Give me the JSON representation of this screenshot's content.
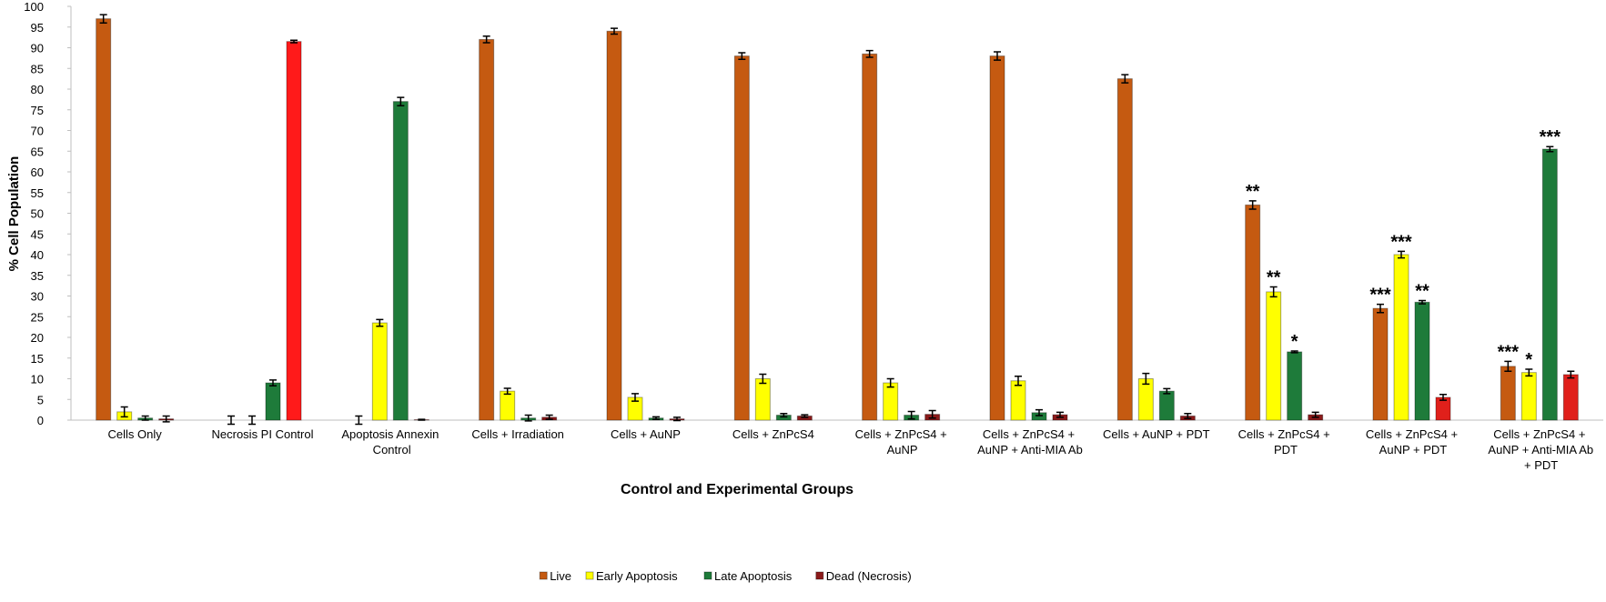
{
  "chart_data": {
    "type": "bar",
    "ylabel": "% Cell Population",
    "xlabel": "Control and Experimental Groups",
    "categories": [
      "Cells Only",
      "Necrosis PI Control",
      "Apoptosis Annexin Control",
      "Cells + Irradiation",
      "Cells + AuNP",
      "Cells + ZnPcS4",
      "Cells + ZnPcS4 + AuNP",
      "Cells + ZnPcS4 + AuNP + Anti-MIA Ab",
      "Cells + AuNP + PDT",
      "Cells + ZnPcS4 + PDT",
      "Cells + ZnPcS4 + AuNP + PDT",
      "Cells + ZnPcS4 + AuNP + Anti-MIA Ab + PDT"
    ],
    "series": [
      {
        "name": "Live",
        "color": "#c55a11",
        "values": [
          97,
          0,
          0,
          92,
          94,
          88,
          88.5,
          88,
          82.5,
          52,
          27,
          13
        ],
        "errors": [
          1,
          1,
          1,
          0.8,
          0.7,
          0.8,
          0.8,
          1,
          1,
          1,
          1,
          1.2
        ],
        "annotations": [
          null,
          null,
          null,
          null,
          null,
          null,
          null,
          null,
          null,
          "**",
          "***",
          "***"
        ]
      },
      {
        "name": "Early Apoptosis",
        "color": "#ffff00",
        "values": [
          2,
          0,
          23.5,
          7,
          5.5,
          10,
          9,
          9.5,
          10,
          31,
          40,
          11.5
        ],
        "errors": [
          1.2,
          1,
          0.8,
          0.7,
          0.9,
          1.1,
          1,
          1.1,
          1.3,
          1.2,
          0.8,
          0.8
        ],
        "annotations": [
          null,
          null,
          null,
          null,
          null,
          null,
          null,
          null,
          null,
          "**",
          "***",
          "*"
        ]
      },
      {
        "name": "Late Apoptosis",
        "color": "#1e7b3a",
        "values": [
          0.5,
          9,
          77,
          0.5,
          0.5,
          1.2,
          1.2,
          1.8,
          7,
          16.5,
          28.5,
          65.5
        ],
        "errors": [
          0.5,
          0.7,
          1,
          0.7,
          0.3,
          0.4,
          0.9,
          0.7,
          0.6,
          0.2,
          0.4,
          0.6
        ],
        "annotations": [
          null,
          null,
          null,
          null,
          null,
          null,
          null,
          null,
          null,
          "*",
          "**",
          "***"
        ]
      },
      {
        "name": "Dead (Necrosis)",
        "color": "#8b1a1a",
        "point_colors": [
          null,
          "#ff1a1a",
          null,
          null,
          null,
          null,
          null,
          null,
          null,
          null,
          "#e0201b",
          "#e0201b"
        ],
        "values": [
          0.3,
          91.5,
          0.1,
          0.7,
          0.3,
          1,
          1.4,
          1.3,
          1,
          1.3,
          5.5,
          11
        ],
        "errors": [
          0.7,
          0.3,
          0.1,
          0.5,
          0.4,
          0.3,
          0.9,
          0.6,
          0.6,
          0.6,
          0.7,
          0.8
        ],
        "annotations": [
          null,
          null,
          null,
          null,
          null,
          null,
          null,
          null,
          null,
          null,
          null,
          null
        ]
      }
    ],
    "ylim": [
      0,
      100
    ],
    "yticks": [
      0,
      5,
      10,
      15,
      20,
      25,
      30,
      35,
      40,
      45,
      50,
      55,
      60,
      65,
      70,
      75,
      80,
      85,
      90,
      95,
      100
    ],
    "grid": false,
    "legend": "bottom"
  }
}
